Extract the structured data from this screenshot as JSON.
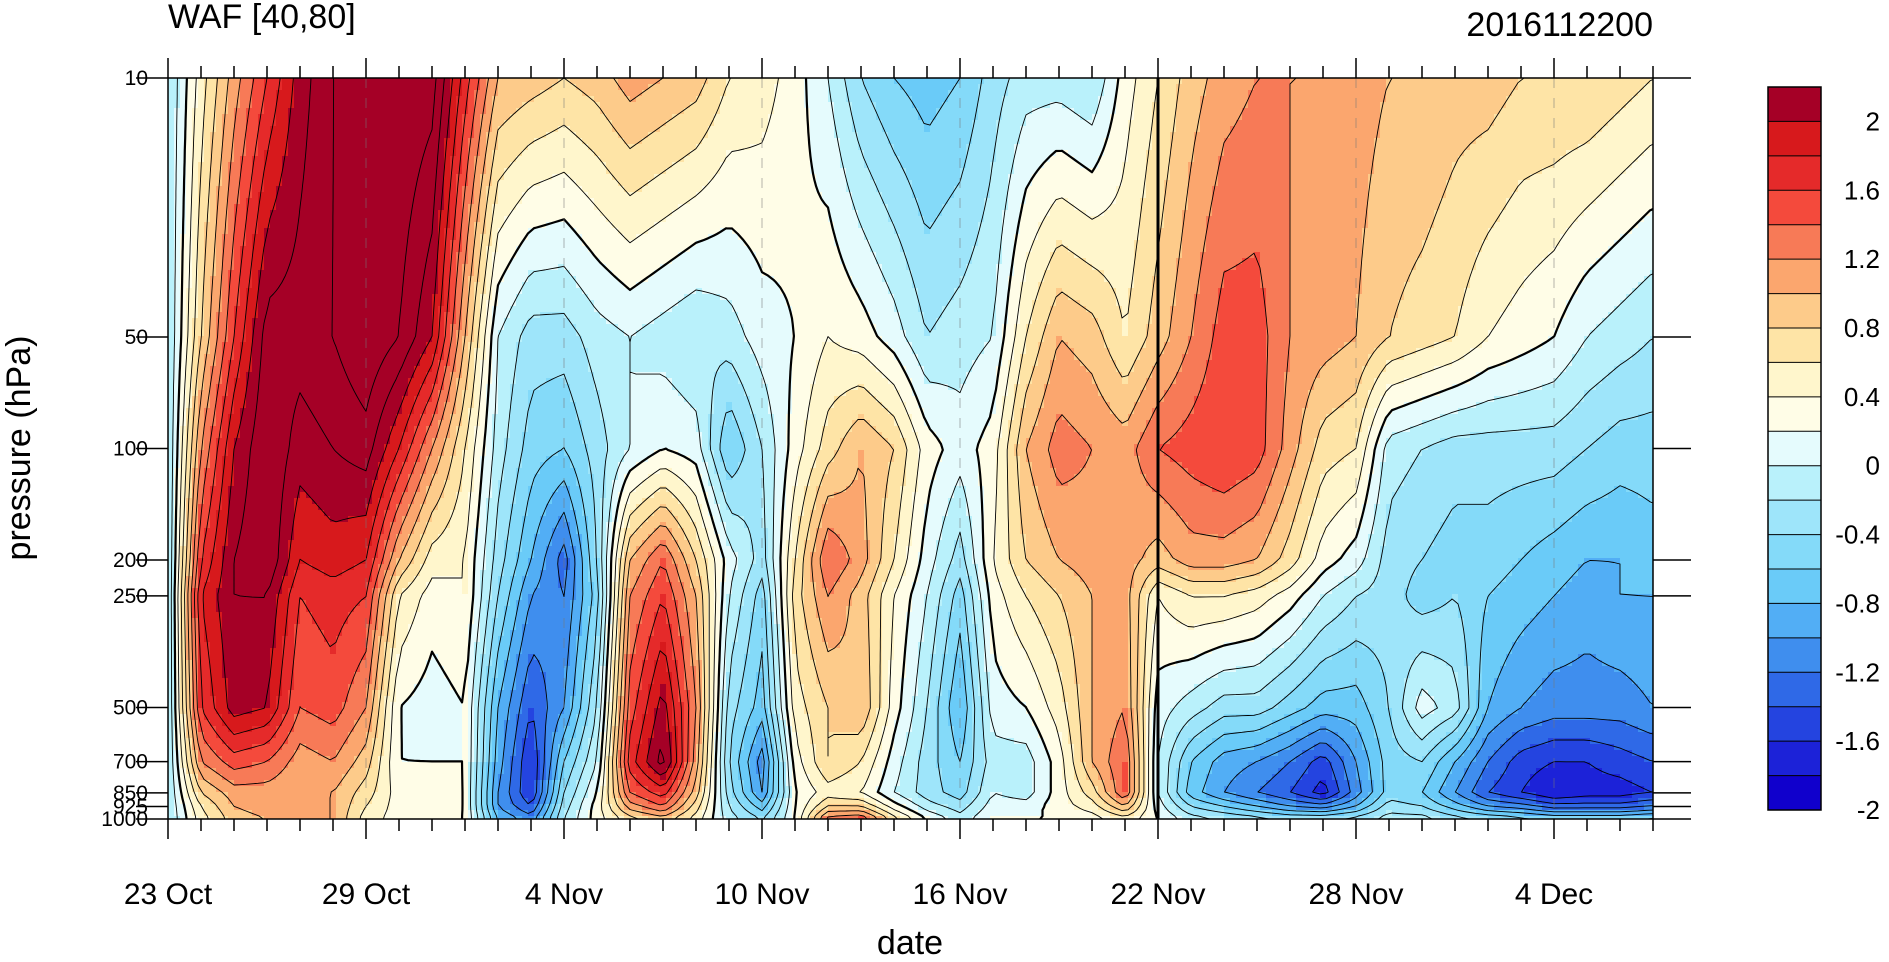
{
  "chart_data": {
    "type": "heatmap",
    "title": "WAF [40,80]",
    "right_title": "2016112200",
    "xlabel": "date",
    "ylabel": "pressure (hPa)",
    "x_dates": [
      "23 Oct",
      "24 Oct",
      "25 Oct",
      "26 Oct",
      "27 Oct",
      "28 Oct",
      "29 Oct",
      "30 Oct",
      "31 Oct",
      "1 Nov",
      "2 Nov",
      "3 Nov",
      "4 Nov",
      "5 Nov",
      "6 Nov",
      "7 Nov",
      "8 Nov",
      "9 Nov",
      "10 Nov",
      "11 Nov",
      "12 Nov",
      "13 Nov",
      "14 Nov",
      "15 Nov",
      "16 Nov",
      "17 Nov",
      "18 Nov",
      "19 Nov",
      "20 Nov",
      "21 Nov",
      "22 Nov",
      "23 Nov",
      "24 Nov",
      "25 Nov",
      "26 Nov",
      "27 Nov",
      "28 Nov",
      "29 Nov",
      "30 Nov",
      "1 Dec",
      "2 Dec",
      "3 Dec",
      "4 Dec",
      "5 Dec",
      "6 Dec",
      "7 Dec"
    ],
    "x_ticklabels": [
      "23 Oct",
      "29 Oct",
      "4 Nov",
      "10 Nov",
      "16 Nov",
      "22 Nov",
      "28 Nov",
      "4 Dec"
    ],
    "x_major_every_days": 6,
    "y_levels_hpa": [
      10,
      50,
      100,
      200,
      250,
      500,
      700,
      850,
      925,
      1000
    ],
    "y_scale": "log",
    "y_reversed": true,
    "y_ticklabels": [
      "10",
      "50",
      "100",
      "200",
      "250",
      "500",
      "700",
      "850",
      "925",
      "1000"
    ],
    "marker_line_date": "22 Nov",
    "colorbar": {
      "labels": [
        "2",
        "1.6",
        "1.2",
        "0.8",
        "0.4",
        "0",
        "-0.4",
        "-0.8",
        "-1.2",
        "-1.6",
        "-2"
      ],
      "colors": [
        "#a50026",
        "#d7191c",
        "#e52a2a",
        "#f44a3c",
        "#f77a57",
        "#fba66e",
        "#fdcb8a",
        "#fee4a6",
        "#fff6cc",
        "#fffde7",
        "#e5fbfd",
        "#b9f1fb",
        "#9ee5fa",
        "#84daf9",
        "#6acbf8",
        "#52aef5",
        "#3f8eee",
        "#2f69e7",
        "#2444e0",
        "#1c22d8",
        "#1000cc"
      ],
      "levels": [
        -2.2,
        -2.0,
        -1.8,
        -1.6,
        -1.4,
        -1.2,
        -1.0,
        -0.8,
        -0.6,
        -0.4,
        -0.2,
        0.0,
        0.2,
        0.4,
        0.6,
        0.8,
        1.0,
        1.2,
        1.4,
        1.6,
        1.8,
        2.0,
        2.2
      ]
    },
    "values": [
      [
        -0.4,
        -0.4,
        -0.4,
        -0.4,
        -0.4,
        -0.4,
        -0.4,
        -0.4,
        -0.4,
        -0.4
      ],
      [
        0.3,
        0.6,
        1.0,
        1.4,
        1.6,
        1.4,
        1.0,
        0.6,
        0.4,
        0.3
      ],
      [
        0.9,
        1.4,
        1.8,
        2.0,
        2.0,
        1.9,
        1.3,
        0.9,
        0.8,
        0.7
      ],
      [
        1.4,
        2.1,
        2.2,
        2.2,
        2.0,
        1.8,
        1.2,
        0.9,
        0.9,
        0.8
      ],
      [
        1.9,
        2.1,
        1.9,
        1.6,
        1.4,
        1.2,
        0.9,
        0.8,
        0.8,
        0.8
      ],
      [
        2.2,
        2.2,
        2.0,
        1.7,
        1.5,
        1.3,
        1.0,
        0.8,
        0.8,
        0.8
      ],
      [
        2.4,
        2.4,
        2.1,
        1.6,
        1.4,
        1.0,
        0.7,
        0.5,
        0.4,
        0.3
      ],
      [
        2.4,
        2.2,
        1.6,
        0.8,
        0.4,
        0.0,
        0.0,
        0.1,
        0.1,
        0.1
      ],
      [
        2.3,
        1.8,
        1.0,
        0.3,
        0.1,
        -0.1,
        0.0,
        0.1,
        0.1,
        0.0
      ],
      [
        1.5,
        0.8,
        0.4,
        0.2,
        0.2,
        0.0,
        0.0,
        0.0,
        0.0,
        0.0
      ],
      [
        0.8,
        -0.2,
        -0.3,
        -0.5,
        -0.6,
        -1.0,
        -1.1,
        -1.2,
        -1.2,
        -1.0
      ],
      [
        0.7,
        -0.5,
        -0.7,
        -1.0,
        -1.2,
        -1.6,
        -1.8,
        -1.8,
        -1.6,
        -1.3
      ],
      [
        0.6,
        -0.5,
        -0.8,
        -1.5,
        -1.4,
        -1.2,
        -0.8,
        -0.6,
        -0.5,
        -0.4
      ],
      [
        0.7,
        -0.3,
        -0.5,
        -0.6,
        -0.7,
        -0.4,
        -0.2,
        0.0,
        0.1,
        0.1
      ],
      [
        0.9,
        -0.2,
        -0.2,
        0.8,
        1.0,
        1.3,
        1.5,
        1.2,
        0.9,
        0.5
      ],
      [
        0.8,
        -0.3,
        0.0,
        1.2,
        1.4,
        1.9,
        2.1,
        1.5,
        1.2,
        0.7
      ],
      [
        0.7,
        -0.4,
        -0.1,
        0.6,
        0.8,
        1.0,
        0.9,
        0.7,
        0.5,
        0.3
      ],
      [
        0.4,
        -0.3,
        -0.8,
        -0.1,
        -0.2,
        -0.5,
        -0.6,
        -0.5,
        -0.4,
        -0.3
      ],
      [
        0.3,
        -0.1,
        -0.4,
        -0.5,
        -0.7,
        -0.9,
        -1.3,
        -1.2,
        -0.9,
        -0.6
      ],
      [
        0.1,
        0.0,
        0.1,
        0.4,
        0.5,
        0.3,
        0.1,
        0.0,
        0.0,
        0.0
      ],
      [
        -0.2,
        0.2,
        0.5,
        1.2,
        1.0,
        0.6,
        0.6,
        0.3,
        0.6,
        1.1
      ],
      [
        -0.6,
        0.1,
        0.8,
        0.9,
        0.7,
        0.8,
        0.4,
        0.2,
        0.6,
        1.2
      ],
      [
        -0.8,
        -0.1,
        0.6,
        0.4,
        0.2,
        0.1,
        -0.1,
        -0.2,
        0.1,
        0.5
      ],
      [
        -0.9,
        -0.4,
        0.1,
        -0.1,
        -0.2,
        -0.4,
        -0.5,
        -0.5,
        -0.3,
        0.0
      ],
      [
        -0.8,
        -0.3,
        -0.1,
        -0.5,
        -0.7,
        -1.0,
        -0.8,
        -0.7,
        -0.5,
        -0.3
      ],
      [
        -0.5,
        -0.2,
        0.1,
        0.2,
        0.1,
        -0.1,
        -0.3,
        -0.2,
        -0.1,
        0.0
      ],
      [
        -0.3,
        0.4,
        0.8,
        0.6,
        0.4,
        0.0,
        -0.3,
        -0.3,
        -0.1,
        0.0
      ],
      [
        -0.3,
        0.8,
        1.1,
        0.8,
        0.6,
        0.3,
        0.1,
        0.1,
        0.1,
        0.0
      ],
      [
        -0.4,
        0.7,
        1.0,
        0.9,
        0.8,
        0.8,
        0.8,
        0.5,
        0.3,
        0.1
      ],
      [
        0.1,
        0.4,
        0.9,
        0.9,
        0.9,
        1.0,
        1.2,
        1.2,
        0.8,
        0.3
      ],
      [
        0.4,
        0.7,
        1.2,
        0.7,
        0.2,
        -0.1,
        -0.2,
        -0.2,
        -0.1,
        0.0
      ],
      [
        0.7,
        1.0,
        1.3,
        0.9,
        0.4,
        -0.3,
        -0.8,
        -0.9,
        -0.6,
        -0.3
      ],
      [
        0.9,
        1.3,
        1.4,
        0.9,
        0.4,
        -0.5,
        -1.1,
        -1.2,
        -0.8,
        -0.4
      ],
      [
        1.0,
        1.3,
        1.3,
        0.8,
        0.3,
        -0.5,
        -1.2,
        -1.4,
        -1.0,
        -0.5
      ],
      [
        1.0,
        1.0,
        0.9,
        0.5,
        0.1,
        -0.7,
        -1.4,
        -1.6,
        -1.2,
        -0.6
      ],
      [
        1.0,
        0.9,
        0.5,
        0.1,
        -0.2,
        -0.9,
        -1.7,
        -1.9,
        -1.3,
        -0.6
      ],
      [
        0.9,
        0.8,
        0.4,
        -0.1,
        -0.4,
        -0.9,
        -1.2,
        -1.3,
        -1.0,
        -0.5
      ],
      [
        0.8,
        0.6,
        -0.3,
        -0.5,
        -0.5,
        -0.6,
        -0.7,
        -0.7,
        -0.5,
        -0.3
      ],
      [
        0.8,
        0.5,
        -0.4,
        -0.6,
        -0.7,
        -0.1,
        -0.6,
        -0.8,
        -0.6,
        -0.3
      ],
      [
        0.7,
        0.4,
        -0.5,
        -0.7,
        -0.6,
        -0.3,
        -1.0,
        -1.2,
        -0.9,
        -0.5
      ],
      [
        0.7,
        0.2,
        -0.5,
        -0.7,
        -0.8,
        -1.0,
        -1.4,
        -1.6,
        -1.2,
        -0.6
      ],
      [
        0.6,
        0.1,
        -0.5,
        -0.8,
        -0.9,
        -1.2,
        -1.7,
        -1.8,
        -1.3,
        -0.7
      ],
      [
        0.6,
        0.0,
        -0.5,
        -0.9,
        -1.0,
        -1.3,
        -1.8,
        -2.0,
        -1.5,
        -0.8
      ],
      [
        0.6,
        -0.2,
        -0.6,
        -1.0,
        -1.1,
        -1.3,
        -1.8,
        -1.9,
        -1.5,
        -0.8
      ],
      [
        0.5,
        -0.3,
        -0.7,
        -1.0,
        -1.0,
        -1.3,
        -1.7,
        -1.9,
        -1.5,
        -0.8
      ],
      [
        0.4,
        -0.4,
        -0.7,
        -0.9,
        -1.0,
        -1.2,
        -1.6,
        -1.8,
        -1.4,
        -0.7
      ]
    ]
  }
}
